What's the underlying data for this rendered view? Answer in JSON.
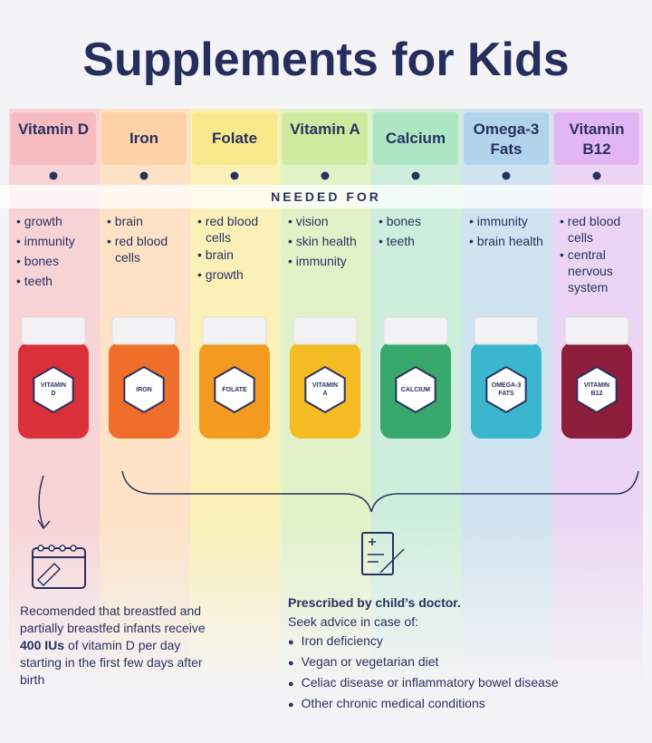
{
  "title": "Supplements for Kids",
  "needed_for": "NEEDED FOR",
  "columns": [
    {
      "name": "Vitamin D",
      "uses": [
        "growth",
        "immunity",
        "bones",
        "teeth"
      ],
      "bottle_label": [
        "VITAMIN",
        "D"
      ]
    },
    {
      "name": "Iron",
      "uses": [
        "brain",
        "red blood cells"
      ],
      "bottle_label": [
        "IRON"
      ]
    },
    {
      "name": "Folate",
      "uses": [
        "red blood cells",
        "brain",
        "growth"
      ],
      "bottle_label": [
        "FOLATE"
      ]
    },
    {
      "name": "Vitamin A",
      "uses": [
        "vision",
        "skin health",
        "immunity"
      ],
      "bottle_label": [
        "VITAMIN",
        "A"
      ]
    },
    {
      "name": "Calcium",
      "uses": [
        "bones",
        "teeth"
      ],
      "bottle_label": [
        "CALCIUM"
      ]
    },
    {
      "name": "Omega-3 Fats",
      "uses": [
        "immunity",
        "brain health"
      ],
      "bottle_label": [
        "OMEGA-3",
        "FATS"
      ]
    },
    {
      "name": "Vitamin B12",
      "uses": [
        "red blood cells",
        "central nervous system"
      ],
      "bottle_label": [
        "VITAMIN",
        "B12"
      ]
    }
  ],
  "vitamin_d_note": {
    "before": "Recomended that breastfed and partially breastfed infants receive",
    "bold": "400 IUs",
    "after": "of vitamin D per day starting in the first few days after birth"
  },
  "doctor": {
    "heading": "Prescribed by child’s doctor.",
    "subheading": "Seek advice in case of:",
    "items": [
      "Iron deficiency",
      "Vegan or vegetarian diet",
      "Celiac disease or inflammatory bowel disease",
      "Other chronic medical conditions"
    ]
  }
}
